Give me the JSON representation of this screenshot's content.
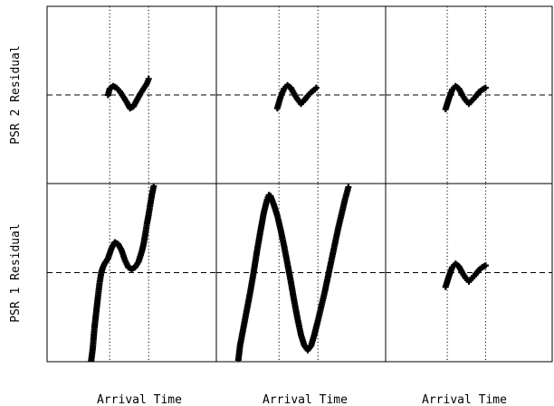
{
  "chart_data": {
    "type": "scatter",
    "layout": {
      "rows": 2,
      "cols": 3
    },
    "ylabels": [
      "PSR 2 Residual",
      "PSR 1 Residual"
    ],
    "xlabels": [
      "Arrival Time",
      "Arrival Time",
      "Arrival Time"
    ],
    "xlim": [
      0,
      1
    ],
    "ylim": [
      -1,
      1
    ],
    "grid": false,
    "marker": "+",
    "reference_lines": {
      "horizontal_dashed_y": 0,
      "vertical_dotted_x": [
        0.37,
        0.6
      ]
    },
    "panels": [
      {
        "row": 0,
        "col": 0,
        "series": [
          {
            "x": [
              0.36,
              0.37,
              0.39,
              0.41,
              0.43,
              0.45,
              0.47,
              0.49,
              0.51,
              0.53,
              0.55,
              0.57,
              0.59,
              0.6
            ],
            "y": [
              0.0,
              0.07,
              0.1,
              0.08,
              0.04,
              -0.02,
              -0.08,
              -0.15,
              -0.13,
              -0.06,
              0.01,
              0.07,
              0.13,
              0.18
            ]
          }
        ]
      },
      {
        "row": 0,
        "col": 1,
        "series": [
          {
            "x": [
              0.36,
              0.38,
              0.4,
              0.42,
              0.44,
              0.46,
              0.48,
              0.5,
              0.52,
              0.54,
              0.56,
              0.58,
              0.59
            ],
            "y": [
              -0.15,
              -0.02,
              0.07,
              0.11,
              0.08,
              0.01,
              -0.05,
              -0.1,
              -0.06,
              -0.01,
              0.03,
              0.06,
              0.08
            ]
          }
        ]
      },
      {
        "row": 0,
        "col": 2,
        "series": [
          {
            "x": [
              0.36,
              0.38,
              0.4,
              0.42,
              0.44,
              0.46,
              0.48,
              0.5,
              0.52,
              0.54,
              0.56,
              0.58,
              0.6
            ],
            "y": [
              -0.16,
              -0.04,
              0.06,
              0.1,
              0.07,
              0.0,
              -0.06,
              -0.1,
              -0.06,
              -0.02,
              0.03,
              0.06,
              0.08
            ]
          }
        ]
      },
      {
        "row": 1,
        "col": 0,
        "series": [
          {
            "x": [
              0.26,
              0.27,
              0.28,
              0.29,
              0.3,
              0.31,
              0.32,
              0.33,
              0.34,
              0.35,
              0.36,
              0.38,
              0.4,
              0.42,
              0.44,
              0.46,
              0.48,
              0.5,
              0.52,
              0.54,
              0.56,
              0.57,
              0.58,
              0.59,
              0.6,
              0.61,
              0.62,
              0.63
            ],
            "y": [
              -1.0,
              -0.85,
              -0.62,
              -0.45,
              -0.28,
              -0.12,
              0.0,
              0.06,
              0.1,
              0.13,
              0.16,
              0.27,
              0.34,
              0.32,
              0.25,
              0.14,
              0.06,
              0.04,
              0.06,
              0.12,
              0.24,
              0.32,
              0.43,
              0.55,
              0.65,
              0.77,
              0.88,
              0.97
            ]
          }
        ]
      },
      {
        "row": 1,
        "col": 1,
        "series": [
          {
            "x": [
              0.13,
              0.14,
              0.16,
              0.18,
              0.2,
              0.22,
              0.24,
              0.26,
              0.28,
              0.3,
              0.31,
              0.32,
              0.34,
              0.36,
              0.38,
              0.4,
              0.42,
              0.44,
              0.46,
              0.48,
              0.5,
              0.52,
              0.54,
              0.56,
              0.58,
              0.6,
              0.62,
              0.64,
              0.66,
              0.68,
              0.7,
              0.72,
              0.74,
              0.76,
              0.78
            ],
            "y": [
              -0.98,
              -0.82,
              -0.62,
              -0.42,
              -0.22,
              0.0,
              0.24,
              0.46,
              0.67,
              0.82,
              0.87,
              0.86,
              0.76,
              0.64,
              0.48,
              0.3,
              0.1,
              -0.1,
              -0.32,
              -0.52,
              -0.7,
              -0.82,
              -0.87,
              -0.82,
              -0.69,
              -0.54,
              -0.38,
              -0.22,
              -0.04,
              0.14,
              0.32,
              0.5,
              0.66,
              0.82,
              0.96
            ]
          }
        ]
      },
      {
        "row": 1,
        "col": 2,
        "series": [
          {
            "x": [
              0.36,
              0.38,
              0.4,
              0.42,
              0.44,
              0.46,
              0.48,
              0.5,
              0.52,
              0.54,
              0.56,
              0.58,
              0.6
            ],
            "y": [
              -0.16,
              -0.04,
              0.06,
              0.1,
              0.07,
              0.0,
              -0.06,
              -0.1,
              -0.06,
              -0.02,
              0.03,
              0.06,
              0.08
            ]
          }
        ]
      }
    ]
  }
}
